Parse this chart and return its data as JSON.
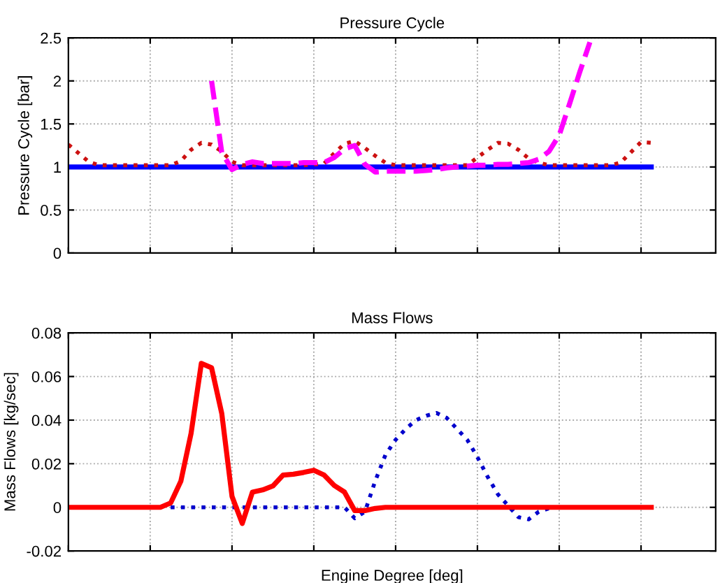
{
  "chart_data": [
    {
      "type": "line",
      "title": "Pressure Cycle",
      "ylabel": "Pressure Cycle [bar]",
      "ylim": [
        0,
        2.5
      ],
      "yticks": [
        0,
        0.5,
        1,
        1.5,
        2,
        2.5
      ],
      "grid": true,
      "tick_labels": "y",
      "categories": [
        null,
        null,
        null,
        null,
        null,
        null,
        null,
        null,
        null,
        null,
        null,
        null,
        null,
        null,
        null,
        null,
        null,
        null,
        null,
        null,
        null,
        null,
        null,
        null,
        null,
        null,
        null,
        null,
        null,
        null,
        null,
        null,
        null,
        null,
        null,
        null,
        null,
        null,
        null,
        null,
        null,
        null,
        null,
        null,
        null,
        null,
        null,
        null,
        null,
        null,
        null,
        null,
        null,
        null,
        null,
        null,
        null,
        null
      ],
      "series": [
        {
          "color": "#0000ff",
          "line_style": "solid",
          "values": [
            1,
            1,
            1,
            1,
            1,
            1,
            1,
            1,
            1,
            1,
            1,
            1,
            1,
            1,
            1,
            1,
            1,
            1,
            1,
            1,
            1,
            1,
            1,
            1,
            1,
            1,
            1,
            1,
            1,
            1,
            1,
            1,
            1,
            1,
            1,
            1,
            1,
            1,
            1,
            1,
            1,
            1,
            1,
            1,
            1,
            1,
            1,
            1,
            1,
            1,
            1,
            1,
            1,
            1,
            1,
            1,
            1,
            1
          ]
        },
        {
          "color": "#cc1111",
          "line_style": "dotted",
          "values": [
            1.26,
            1.16,
            1.06,
            1.02,
            1.02,
            1.02,
            1.02,
            1.02,
            1.02,
            1.02,
            1.02,
            1.07,
            1.2,
            1.28,
            1.26,
            1.18,
            1.06,
            1.02,
            1.02,
            1.02,
            1.02,
            1.02,
            1.02,
            1.02,
            1.03,
            1.04,
            1.16,
            1.27,
            1.3,
            1.22,
            1.13,
            1.05,
            1.02,
            1.02,
            1.02,
            1.02,
            1.02,
            1.02,
            1.02,
            1.02,
            1.11,
            1.2,
            1.28,
            1.27,
            1.2,
            1.1,
            1.05,
            1.02,
            1.02,
            1.02,
            1.02,
            1.02,
            1.02,
            1.02,
            1.05,
            1.17,
            1.29,
            1.28
          ]
        },
        {
          "color": "#ff00ff",
          "line_style": "dashed",
          "values": [
            null,
            null,
            null,
            null,
            null,
            null,
            null,
            null,
            null,
            null,
            null,
            null,
            null,
            null,
            2.0,
            1.17,
            0.97,
            1.03,
            1.06,
            1.04,
            1.04,
            1.04,
            1.04,
            1.05,
            1.05,
            1.05,
            1.11,
            1.21,
            1.25,
            1.03,
            0.94,
            0.95,
            0.95,
            0.95,
            0.95,
            0.96,
            0.97,
            0.99,
            1.0,
            1.01,
            1.02,
            1.02,
            1.03,
            1.03,
            1.04,
            1.05,
            1.09,
            1.18,
            1.37,
            1.73,
            2.1,
            2.45,
            null,
            null,
            null,
            null,
            null,
            null
          ]
        }
      ]
    },
    {
      "type": "line",
      "title": "Mass Flows",
      "ylabel": "Mass Flows [kg/sec]",
      "xlabel": "Engine Degree [deg]",
      "ylim": [
        -0.02,
        0.08
      ],
      "yticks": [
        {
          "value": -0.02,
          "label": "-0.02"
        },
        0,
        0.02,
        0.04,
        0.06,
        0.08
      ],
      "grid": true,
      "tick_labels": "y",
      "categories": [
        null,
        null,
        null,
        null,
        null,
        null,
        null,
        null,
        null,
        null,
        null,
        null,
        null,
        null,
        null,
        null,
        null,
        null,
        null,
        null,
        null,
        null,
        null,
        null,
        null,
        null,
        null,
        null,
        null,
        null,
        null,
        null,
        null,
        null,
        null,
        null,
        null,
        null,
        null,
        null,
        null,
        null,
        null,
        null,
        null,
        null,
        null,
        null,
        null,
        null,
        null,
        null,
        null,
        null,
        null,
        null,
        null,
        null
      ],
      "series": [
        {
          "color": "#0000cc",
          "line_style": "dotted",
          "values": [
            null,
            null,
            null,
            null,
            null,
            null,
            null,
            null,
            null,
            null,
            0,
            0,
            0,
            0,
            0,
            0,
            0,
            0,
            0,
            0,
            0,
            0,
            0,
            0,
            0,
            0,
            0,
            0,
            -0.005,
            -0.002,
            0.012,
            0.024,
            0.031,
            0.036,
            0.04,
            0.042,
            0.0433,
            0.041,
            0.036,
            0.031,
            0.023,
            0.014,
            0.006,
            0.0008,
            -0.0045,
            -0.0055,
            -0.002,
            -0.0005,
            null,
            null,
            null,
            null,
            null,
            null,
            null,
            null,
            null,
            null
          ]
        },
        {
          "color": "#ff0000",
          "line_style": "solid",
          "values": [
            0,
            0,
            0,
            0,
            0,
            0,
            0,
            0,
            0,
            0,
            0.002,
            0.012,
            0.034,
            0.066,
            0.064,
            0.043,
            0.005,
            -0.0074,
            0.007,
            0.008,
            0.0098,
            0.0148,
            0.0152,
            0.016,
            0.017,
            0.0148,
            0.01,
            0.007,
            -0.0015,
            -0.0015,
            -0.0005,
            0,
            0,
            0,
            0,
            0,
            0,
            0,
            0,
            0,
            0,
            0,
            0,
            0,
            0,
            0,
            0,
            0,
            0,
            0,
            0,
            0,
            0,
            0,
            0,
            0,
            0,
            0
          ]
        }
      ]
    }
  ]
}
